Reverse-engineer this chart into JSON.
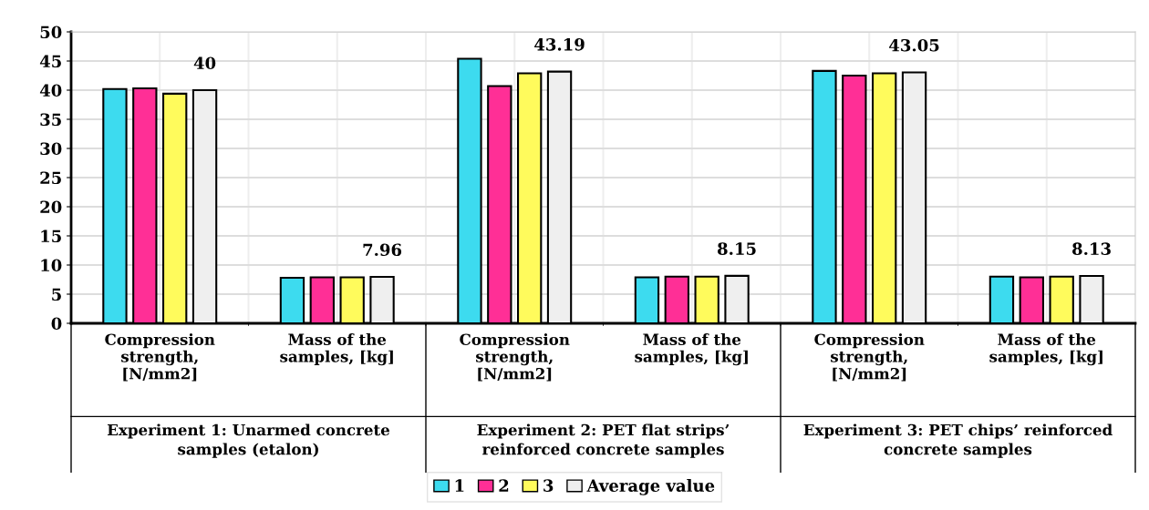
{
  "chart_data": {
    "type": "bar",
    "categories": [
      "Compression\nstrength,\n[N/mm2]",
      "Mass of the\nsamples, [kg]",
      "Compression\nstrength,\n[N/mm2]",
      "Mass of the\nsamples, [kg]",
      "Compression\nstrength,\n[N/mm2]",
      "Mass of the\nsamples, [kg]"
    ],
    "series": [
      {
        "name": "1",
        "color": "#3ddbef",
        "values": [
          40.2,
          7.8,
          45.4,
          7.9,
          43.3,
          8.0
        ]
      },
      {
        "name": "2",
        "color": "#ff2f96",
        "values": [
          40.3,
          7.9,
          40.7,
          8.0,
          42.5,
          7.9
        ]
      },
      {
        "name": "3",
        "color": "#fffb5c",
        "values": [
          39.4,
          7.9,
          42.9,
          8.0,
          42.9,
          8.0
        ]
      },
      {
        "name": "Average value",
        "color": "#efefef",
        "values": [
          40,
          7.96,
          43.19,
          8.15,
          43.05,
          8.13
        ],
        "value_labels": [
          "40",
          "7.96",
          "43.19",
          "8.15",
          "43.05",
          "8.13"
        ]
      }
    ],
    "annotations": [
      "Experiment 1: Unarmed concrete\nsamples (etalon)",
      "Experiment 2: PET flat strips’\nreinforced concrete samples",
      "Experiment 3: PET chips’ reinforced\nconcrete samples"
    ],
    "ylim": [
      0,
      50
    ],
    "yticks": [
      0,
      5,
      10,
      15,
      20,
      25,
      30,
      35,
      40,
      45,
      50
    ],
    "grid": true,
    "legend": "bottom"
  }
}
